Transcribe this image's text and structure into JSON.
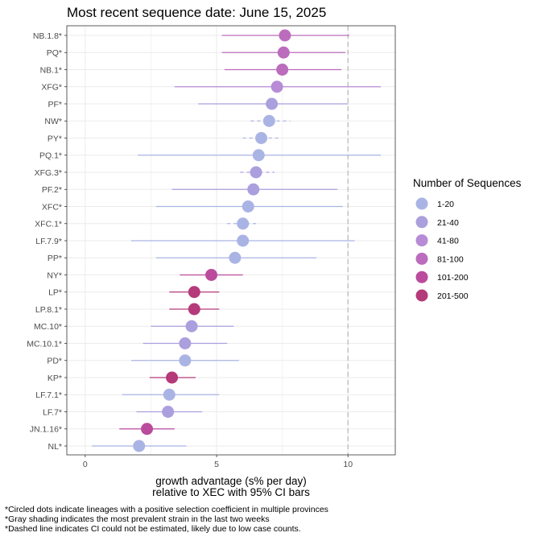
{
  "colors": {
    "1-20": "#aab4e4",
    "21-40": "#ab9fdd",
    "41-80": "#b78bd6",
    "81-100": "#bb6cbc",
    "101-200": "#bb4b9c",
    "201-500": "#b53a7a",
    "refline": "#b8b8b8",
    "grid": "#ebebeb"
  },
  "chart_data": {
    "type": "scatter",
    "title": "Most recent sequence date: June 15, 2025",
    "xlabel_line1": "growth advantage (s% per day)",
    "xlabel_line2": "relative to  XEC  with 95% CI bars",
    "xlim": [
      -0.7,
      11.8
    ],
    "xticks": [
      0,
      5,
      10
    ],
    "reference_line_x": 10,
    "legend_title": "Number of Sequences",
    "legend_position": "right",
    "legend_items": [
      "1-20",
      "21-40",
      "41-80",
      "81-100",
      "101-200",
      "201-500"
    ],
    "points": [
      {
        "lineage": "NB.1.8*",
        "value": 7.6,
        "lo": 5.2,
        "hi": 10.05,
        "group": "81-100",
        "dashed": false
      },
      {
        "lineage": "PQ*",
        "value": 7.55,
        "lo": 5.2,
        "hi": 9.9,
        "group": "81-100",
        "dashed": false
      },
      {
        "lineage": "NB.1*",
        "value": 7.5,
        "lo": 5.3,
        "hi": 9.75,
        "group": "81-100",
        "dashed": false
      },
      {
        "lineage": "XFG*",
        "value": 7.3,
        "lo": 3.4,
        "hi": 11.25,
        "group": "41-80",
        "dashed": false
      },
      {
        "lineage": "PF*",
        "value": 7.1,
        "lo": 4.3,
        "hi": 10.0,
        "group": "21-40",
        "dashed": false
      },
      {
        "lineage": "NW*",
        "value": 7.0,
        "lo": 6.3,
        "hi": 7.8,
        "group": "1-20",
        "dashed": true
      },
      {
        "lineage": "PY*",
        "value": 6.7,
        "lo": 6.0,
        "hi": 7.4,
        "group": "1-20",
        "dashed": true
      },
      {
        "lineage": "PQ.1*",
        "value": 6.6,
        "lo": 2.0,
        "hi": 11.25,
        "group": "1-20",
        "dashed": false
      },
      {
        "lineage": "XFG.3*",
        "value": 6.5,
        "lo": 5.9,
        "hi": 7.2,
        "group": "21-40",
        "dashed": true
      },
      {
        "lineage": "PF.2*",
        "value": 6.4,
        "lo": 3.3,
        "hi": 9.6,
        "group": "21-40",
        "dashed": false
      },
      {
        "lineage": "XFC*",
        "value": 6.2,
        "lo": 2.7,
        "hi": 9.8,
        "group": "1-20",
        "dashed": false
      },
      {
        "lineage": "XFC.1*",
        "value": 6.0,
        "lo": 5.4,
        "hi": 6.6,
        "group": "1-20",
        "dashed": true
      },
      {
        "lineage": "LF.7.9*",
        "value": 6.0,
        "lo": 1.75,
        "hi": 10.25,
        "group": "1-20",
        "dashed": false
      },
      {
        "lineage": "PP*",
        "value": 5.7,
        "lo": 2.7,
        "hi": 8.8,
        "group": "1-20",
        "dashed": false
      },
      {
        "lineage": "NY*",
        "value": 4.8,
        "lo": 3.6,
        "hi": 6.0,
        "group": "101-200",
        "dashed": false
      },
      {
        "lineage": "LP*",
        "value": 4.15,
        "lo": 3.2,
        "hi": 5.1,
        "group": "201-500",
        "dashed": false
      },
      {
        "lineage": "LP.8.1*",
        "value": 4.15,
        "lo": 3.2,
        "hi": 5.1,
        "group": "201-500",
        "dashed": false
      },
      {
        "lineage": "MC.10*",
        "value": 4.05,
        "lo": 2.5,
        "hi": 5.65,
        "group": "21-40",
        "dashed": false
      },
      {
        "lineage": "MC.10.1*",
        "value": 3.8,
        "lo": 2.2,
        "hi": 5.4,
        "group": "21-40",
        "dashed": false
      },
      {
        "lineage": "PD*",
        "value": 3.8,
        "lo": 1.75,
        "hi": 5.85,
        "group": "1-20",
        "dashed": false
      },
      {
        "lineage": "KP*",
        "value": 3.3,
        "lo": 2.45,
        "hi": 4.2,
        "group": "201-500",
        "dashed": false
      },
      {
        "lineage": "LF.7.1*",
        "value": 3.2,
        "lo": 1.4,
        "hi": 5.1,
        "group": "1-20",
        "dashed": false
      },
      {
        "lineage": "LF.7*",
        "value": 3.15,
        "lo": 1.95,
        "hi": 4.45,
        "group": "21-40",
        "dashed": false
      },
      {
        "lineage": "JN.1.16*",
        "value": 2.35,
        "lo": 1.3,
        "hi": 3.4,
        "group": "101-200",
        "dashed": false
      },
      {
        "lineage": "NL*",
        "value": 2.05,
        "lo": 0.25,
        "hi": 3.85,
        "group": "1-20",
        "dashed": false
      }
    ]
  },
  "footnotes": [
    "*Circled dots indicate lineages with a positive selection coefficient in multiple provinces",
    "*Gray shading indicates the most prevalent strain in the last two weeks",
    "*Dashed line indicates CI could not be estimated, likely due to low case counts."
  ]
}
